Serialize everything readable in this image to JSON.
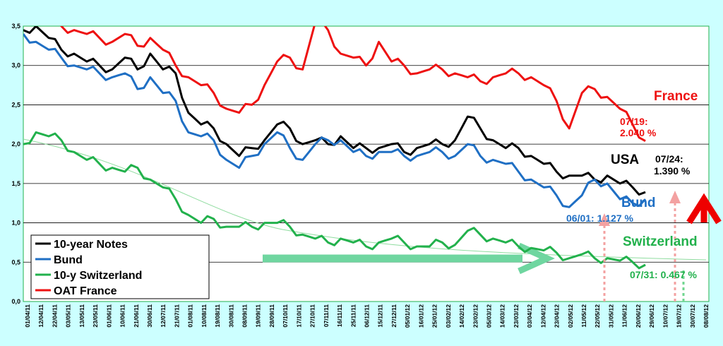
{
  "chart_data": {
    "type": "line",
    "title": "",
    "xlabel": "",
    "ylabel": "",
    "ylim": [
      0,
      3.5
    ],
    "y_ticks": [
      "0,0",
      "0,5",
      "1,0",
      "1,5",
      "2,0",
      "2,5",
      "3,0",
      "3,5"
    ],
    "y_tick_values": [
      0,
      0.5,
      1.0,
      1.5,
      2.0,
      2.5,
      3.0,
      3.5
    ],
    "grid": true,
    "legend_position": "bottom-left",
    "x_tick_labels": [
      "01/04/11",
      "12/04/11",
      "03/05/11",
      "23/05/11",
      "10/06/11",
      "30/06/11",
      "21/07/11",
      "10/08/11",
      "30/08/11",
      "19/09/11",
      "07/10/11",
      "27/10/11",
      "16/11/11",
      "06/12/11",
      "27/12/11",
      "16/01/12",
      "03/02/12",
      "23/02/12",
      "14/03/12",
      "03/04/12",
      "23/04/12",
      "11/05/12",
      "31/05/12",
      "20/06/12",
      "10/07/12",
      "30/07/12",
      "01/08/11",
      "19/08/11",
      "08/09/11",
      "28/09/11",
      "17/10/11",
      "07/11/11",
      "25/11/11",
      "15/12/11",
      "05/01/12",
      "25/01/12",
      "14/02/12",
      "05/03/12",
      "23/03/12",
      "12/04/12",
      "02/05/12",
      "22/05/12",
      "11/06/12",
      "29/06/12",
      "19/07/12",
      "08/08/12",
      "22/04/11",
      "13/05/11",
      "01/06/11",
      "21/06/11",
      "12/07/11"
    ],
    "x_labels_ordered": [
      "01/04/11",
      "12/04/11",
      "22/04/11",
      "03/05/11",
      "13/05/11",
      "23/05/11",
      "01/06/11",
      "10/06/11",
      "21/06/11",
      "30/06/11",
      "12/07/11",
      "21/07/11",
      "01/08/11",
      "10/08/11",
      "19/08/11",
      "30/08/11",
      "08/09/11",
      "19/09/11",
      "28/09/11",
      "07/10/11",
      "17/10/11",
      "27/10/11",
      "07/11/11",
      "16/11/11",
      "25/11/11",
      "06/12/11",
      "15/12/11",
      "27/12/11",
      "05/01/12",
      "16/01/12",
      "25/01/12",
      "03/02/12",
      "14/02/12",
      "23/02/12",
      "05/03/12",
      "14/03/12",
      "23/03/12",
      "03/04/12",
      "12/04/12",
      "23/04/12",
      "02/05/12",
      "11/05/12",
      "22/05/12",
      "31/05/12",
      "11/06/12",
      "20/06/12",
      "29/06/12",
      "10/07/12",
      "19/07/12",
      "30/07/12",
      "08/08/12"
    ],
    "x": [
      0,
      2,
      4,
      6,
      8,
      10,
      12,
      14,
      16,
      18,
      20,
      22,
      24,
      26,
      28,
      30,
      32,
      34,
      36,
      38,
      40,
      42,
      44,
      46,
      48,
      50
    ],
    "x_point_labels": [
      "01/04/11",
      "22/04/11",
      "13/05/11",
      "01/06/11",
      "21/06/11",
      "12/07/11",
      "01/08/11",
      "19/08/11",
      "08/09/11",
      "28/09/11",
      "17/10/11",
      "07/11/11",
      "25/11/11",
      "15/12/11",
      "05/01/12",
      "25/01/12",
      "14/02/12",
      "05/03/12",
      "23/03/12",
      "12/04/12",
      "02/05/12",
      "22/05/12",
      "11/06/12",
      "29/06/12",
      "19/07/12",
      "08/08/12"
    ],
    "series": [
      {
        "name": "10-year Notes",
        "color": "#000000",
        "points": [
          [
            0,
            3.45
          ],
          [
            1,
            3.5
          ],
          [
            2,
            3.35
          ],
          [
            3,
            3.2
          ],
          [
            4,
            3.15
          ],
          [
            5,
            3.05
          ],
          [
            6,
            3.0
          ],
          [
            7,
            2.95
          ],
          [
            8,
            3.1
          ],
          [
            9,
            2.95
          ],
          [
            10,
            3.15
          ],
          [
            11,
            2.95
          ],
          [
            12,
            2.9
          ],
          [
            13,
            2.4
          ],
          [
            14,
            2.25
          ],
          [
            15,
            2.2
          ],
          [
            16,
            2.0
          ],
          [
            17,
            1.85
          ],
          [
            18,
            1.95
          ],
          [
            19,
            2.05
          ],
          [
            20,
            2.25
          ],
          [
            21,
            2.2
          ],
          [
            22,
            2.0
          ],
          [
            23,
            2.05
          ],
          [
            24,
            2.0
          ],
          [
            25,
            2.1
          ],
          [
            26,
            1.95
          ],
          [
            27,
            1.95
          ],
          [
            28,
            1.95
          ],
          [
            29,
            2.0
          ],
          [
            30,
            1.9
          ],
          [
            31,
            1.95
          ],
          [
            32,
            2.0
          ],
          [
            33,
            2.0
          ],
          [
            34,
            2.05
          ],
          [
            35,
            2.35
          ],
          [
            36,
            2.2
          ],
          [
            37,
            2.05
          ],
          [
            38,
            1.95
          ],
          [
            39,
            1.95
          ],
          [
            40,
            1.85
          ],
          [
            41,
            1.75
          ],
          [
            42,
            1.65
          ],
          [
            43,
            1.6
          ],
          [
            44,
            1.6
          ],
          [
            45,
            1.55
          ],
          [
            46,
            1.6
          ],
          [
            47,
            1.5
          ],
          [
            48,
            1.45
          ],
          [
            49,
            1.39
          ]
        ]
      },
      {
        "name": "Bund",
        "color": "#1f6fc4",
        "points": [
          [
            0,
            3.4
          ],
          [
            1,
            3.3
          ],
          [
            2,
            3.2
          ],
          [
            3,
            3.1
          ],
          [
            4,
            3.0
          ],
          [
            5,
            2.95
          ],
          [
            6,
            2.9
          ],
          [
            7,
            2.85
          ],
          [
            8,
            2.9
          ],
          [
            9,
            2.7
          ],
          [
            10,
            2.85
          ],
          [
            11,
            2.65
          ],
          [
            12,
            2.55
          ],
          [
            13,
            2.15
          ],
          [
            14,
            2.1
          ],
          [
            15,
            2.05
          ],
          [
            16,
            1.8
          ],
          [
            17,
            1.7
          ],
          [
            18,
            1.85
          ],
          [
            19,
            2.0
          ],
          [
            20,
            2.15
          ],
          [
            21,
            1.95
          ],
          [
            22,
            1.8
          ],
          [
            23,
            2.0
          ],
          [
            24,
            2.05
          ],
          [
            25,
            2.05
          ],
          [
            26,
            1.9
          ],
          [
            27,
            1.85
          ],
          [
            28,
            1.9
          ],
          [
            29,
            1.9
          ],
          [
            30,
            1.85
          ],
          [
            31,
            1.85
          ],
          [
            32,
            1.9
          ],
          [
            33,
            1.9
          ],
          [
            34,
            1.85
          ],
          [
            35,
            2.0
          ],
          [
            36,
            1.85
          ],
          [
            37,
            1.8
          ],
          [
            38,
            1.75
          ],
          [
            39,
            1.65
          ],
          [
            40,
            1.55
          ],
          [
            41,
            1.45
          ],
          [
            42,
            1.35
          ],
          [
            43,
            1.2
          ],
          [
            44,
            1.35
          ],
          [
            45,
            1.55
          ],
          [
            46,
            1.5
          ],
          [
            47,
            1.3
          ],
          [
            48,
            1.25
          ],
          [
            49,
            1.3
          ]
        ]
      },
      {
        "name": "10-y Switzerland",
        "color": "#22b14c",
        "points": [
          [
            0,
            2.0
          ],
          [
            1,
            2.15
          ],
          [
            2,
            2.1
          ],
          [
            3,
            2.05
          ],
          [
            4,
            1.9
          ],
          [
            5,
            1.8
          ],
          [
            6,
            1.75
          ],
          [
            7,
            1.7
          ],
          [
            8,
            1.65
          ],
          [
            9,
            1.7
          ],
          [
            10,
            1.55
          ],
          [
            11,
            1.45
          ],
          [
            12,
            1.3
          ],
          [
            13,
            1.1
          ],
          [
            14,
            1.0
          ],
          [
            15,
            1.05
          ],
          [
            16,
            0.95
          ],
          [
            17,
            0.95
          ],
          [
            18,
            0.95
          ],
          [
            19,
            1.0
          ],
          [
            20,
            1.0
          ],
          [
            21,
            0.95
          ],
          [
            22,
            0.85
          ],
          [
            23,
            0.8
          ],
          [
            24,
            0.75
          ],
          [
            25,
            0.8
          ],
          [
            26,
            0.75
          ],
          [
            27,
            0.7
          ],
          [
            28,
            0.75
          ],
          [
            29,
            0.8
          ],
          [
            30,
            0.75
          ],
          [
            31,
            0.7
          ],
          [
            32,
            0.7
          ],
          [
            33,
            0.75
          ],
          [
            34,
            0.72
          ],
          [
            35,
            0.9
          ],
          [
            36,
            0.85
          ],
          [
            37,
            0.8
          ],
          [
            38,
            0.75
          ],
          [
            39,
            0.7
          ],
          [
            40,
            0.68
          ],
          [
            41,
            0.65
          ],
          [
            42,
            0.62
          ],
          [
            43,
            0.55
          ],
          [
            44,
            0.6
          ],
          [
            45,
            0.55
          ],
          [
            46,
            0.55
          ],
          [
            47,
            0.52
          ],
          [
            48,
            0.5
          ],
          [
            49,
            0.467
          ]
        ]
      },
      {
        "name": "OAT France",
        "color": "#ee1111",
        "points": [
          [
            0,
            3.75
          ],
          [
            1,
            3.7
          ],
          [
            2,
            3.6
          ],
          [
            3,
            3.5
          ],
          [
            4,
            3.45
          ],
          [
            5,
            3.4
          ],
          [
            6,
            3.35
          ],
          [
            7,
            3.3
          ],
          [
            8,
            3.4
          ],
          [
            9,
            3.25
          ],
          [
            10,
            3.35
          ],
          [
            11,
            3.2
          ],
          [
            12,
            3.0
          ],
          [
            13,
            2.85
          ],
          [
            14,
            2.75
          ],
          [
            15,
            2.65
          ],
          [
            16,
            2.45
          ],
          [
            17,
            2.4
          ],
          [
            18,
            2.5
          ],
          [
            19,
            2.75
          ],
          [
            20,
            3.05
          ],
          [
            21,
            3.1
          ],
          [
            22,
            2.95
          ],
          [
            23,
            3.55
          ],
          [
            24,
            3.45
          ],
          [
            25,
            3.15
          ],
          [
            26,
            3.1
          ],
          [
            27,
            3.0
          ],
          [
            28,
            3.3
          ],
          [
            29,
            3.05
          ],
          [
            30,
            3.0
          ],
          [
            31,
            2.9
          ],
          [
            32,
            2.95
          ],
          [
            33,
            2.95
          ],
          [
            34,
            2.9
          ],
          [
            35,
            2.85
          ],
          [
            36,
            2.8
          ],
          [
            37,
            2.85
          ],
          [
            38,
            2.9
          ],
          [
            39,
            2.9
          ],
          [
            40,
            2.85
          ],
          [
            41,
            2.75
          ],
          [
            42,
            2.55
          ],
          [
            43,
            2.2
          ],
          [
            44,
            2.65
          ],
          [
            45,
            2.7
          ],
          [
            46,
            2.6
          ],
          [
            47,
            2.45
          ],
          [
            48,
            2.25
          ],
          [
            49,
            2.04
          ]
        ]
      }
    ],
    "annotations": {
      "france_label": "France",
      "france_date": "07/19:",
      "france_value": "2.040 %",
      "usa_label": "USA",
      "usa_date": "07/24:",
      "usa_value": "1.390 %",
      "bund_label": "Bund",
      "bund_note": "06/01: 1.127 %",
      "swiss_label": "Switzerland",
      "swiss_note": "07/31: 0.467 %"
    }
  }
}
